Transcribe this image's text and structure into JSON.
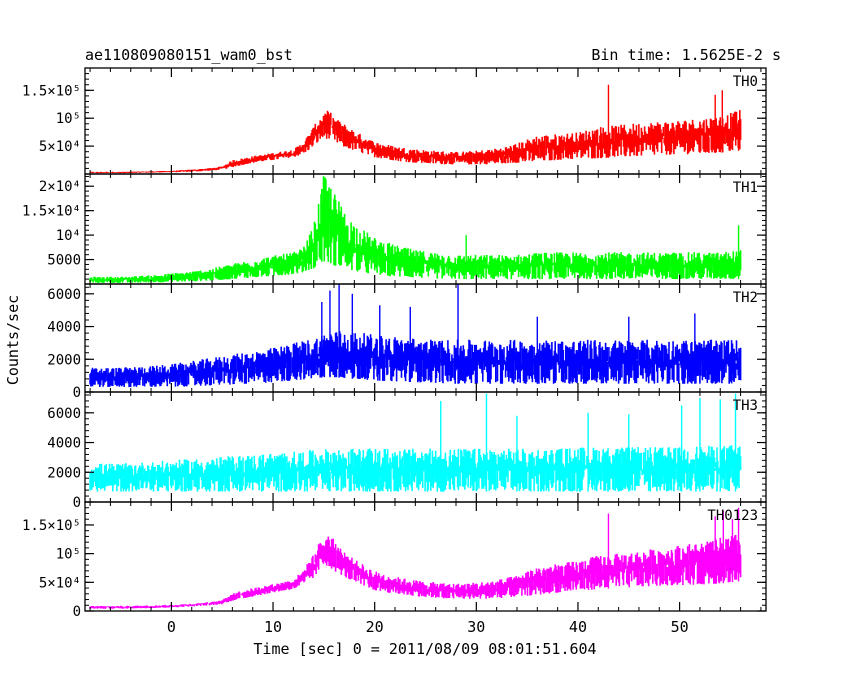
{
  "header": {
    "object_name": "ae110809080151_wam0_bst",
    "bin_time": "Bin time: 1.5625E-2 s"
  },
  "axes": {
    "xlabel": "Time [sec] 0 = 2011/08/09 08:01:51.604",
    "ylabel": "Counts/sec"
  },
  "chart_data": [
    {
      "type": "line",
      "name": "TH0",
      "color": "#ff0000",
      "xlim": [
        -8.5,
        58.5
      ],
      "ylim": [
        0,
        190000
      ],
      "yticks": [
        {
          "v": 50000,
          "label": "5×10⁴"
        },
        {
          "v": 100000,
          "label": "10⁵"
        },
        {
          "v": 150000,
          "label": "1.5×10⁵"
        }
      ],
      "envelope": {
        "x": [
          -8,
          -5,
          -2,
          0,
          2,
          4,
          5,
          6,
          8,
          10,
          12,
          13,
          14,
          14.5,
          15,
          15.5,
          16,
          17,
          18,
          19,
          20,
          22,
          24,
          26,
          28,
          30,
          32,
          34,
          36,
          38,
          40,
          42,
          44,
          46,
          48,
          50,
          52,
          54,
          55,
          56
        ],
        "ymin": [
          1500,
          1500,
          2500,
          3000,
          4000,
          6000,
          8000,
          12000,
          20000,
          25000,
          30000,
          36000,
          50000,
          58000,
          65000,
          62000,
          58000,
          48000,
          42000,
          36000,
          30000,
          24000,
          20000,
          18000,
          17000,
          17000,
          18000,
          20000,
          22000,
          25000,
          27000,
          28000,
          30000,
          32000,
          34000,
          35000,
          36000,
          38000,
          40000,
          42000
        ],
        "ymax": [
          4000,
          4000,
          5000,
          6000,
          8000,
          11000,
          14000,
          25000,
          32000,
          38000,
          44000,
          58000,
          85000,
          100000,
          110000,
          115000,
          102000,
          90000,
          78000,
          68000,
          58000,
          50000,
          45000,
          42000,
          40000,
          42000,
          46000,
          55000,
          70000,
          72000,
          75000,
          85000,
          88000,
          92000,
          95000,
          97000,
          100000,
          105000,
          110000,
          115000
        ]
      },
      "spikes": [
        [
          43,
          160000
        ],
        [
          53.5,
          142000
        ],
        [
          54.2,
          150000
        ],
        [
          55.8,
          95000
        ]
      ]
    },
    {
      "type": "line",
      "name": "TH1",
      "color": "#00ff00",
      "xlim": [
        -8.5,
        58.5
      ],
      "ylim": [
        0,
        22500
      ],
      "yticks": [
        {
          "v": 5000,
          "label": "5000"
        },
        {
          "v": 10000,
          "label": "10⁴"
        },
        {
          "v": 15000,
          "label": "1.5×10⁴"
        },
        {
          "v": 20000,
          "label": "2×10⁴"
        }
      ],
      "envelope": {
        "x": [
          -8,
          -5,
          -2,
          0,
          2,
          4,
          6,
          8,
          10,
          12,
          13,
          14,
          14.5,
          15,
          15.5,
          16,
          17,
          18,
          20,
          22,
          24,
          26,
          28,
          30,
          32,
          34,
          36,
          38,
          40,
          42,
          44,
          46,
          48,
          50,
          52,
          54,
          56
        ],
        "ymin": [
          200,
          200,
          300,
          400,
          500,
          700,
          1000,
          1300,
          1600,
          2000,
          2400,
          3200,
          4000,
          4500,
          4200,
          3800,
          3200,
          2600,
          1900,
          1500,
          1300,
          1100,
          1000,
          1000,
          1000,
          1000,
          1000,
          1000,
          1000,
          1000,
          1000,
          1000,
          1000,
          1000,
          1000,
          1000,
          1000
        ],
        "ymax": [
          1500,
          1500,
          1800,
          2200,
          2600,
          3200,
          4200,
          5000,
          5800,
          6500,
          7500,
          12000,
          17000,
          22500,
          21000,
          19000,
          15000,
          12500,
          9500,
          8000,
          7000,
          6500,
          6000,
          6000,
          6000,
          6000,
          6500,
          6500,
          6500,
          6500,
          6500,
          6500,
          6500,
          6500,
          6500,
          6500,
          7000
        ]
      },
      "spikes": [
        [
          29,
          10000
        ],
        [
          55.8,
          12000
        ]
      ]
    },
    {
      "type": "line",
      "name": "TH2",
      "color": "#0000ff",
      "xlim": [
        -8.5,
        58.5
      ],
      "ylim": [
        0,
        6600
      ],
      "yticks": [
        {
          "v": 0,
          "label": "0"
        },
        {
          "v": 2000,
          "label": "2000"
        },
        {
          "v": 4000,
          "label": "4000"
        },
        {
          "v": 6000,
          "label": "6000"
        }
      ],
      "envelope": {
        "x": [
          -8,
          -5,
          -2,
          0,
          2,
          4,
          6,
          8,
          10,
          12,
          14,
          15,
          16,
          18,
          20,
          22,
          24,
          26,
          28,
          30,
          32,
          34,
          36,
          38,
          40,
          42,
          44,
          46,
          48,
          50,
          52,
          54,
          56
        ],
        "ymin": [
          300,
          300,
          300,
          300,
          350,
          400,
          450,
          500,
          600,
          700,
          800,
          900,
          900,
          800,
          700,
          650,
          600,
          550,
          500,
          500,
          500,
          500,
          500,
          500,
          500,
          500,
          500,
          500,
          500,
          500,
          500,
          500,
          500
        ],
        "ymax": [
          1500,
          1500,
          1600,
          1700,
          1900,
          2100,
          2300,
          2500,
          2700,
          3000,
          3300,
          3600,
          3800,
          3700,
          3500,
          3400,
          3300,
          3200,
          3200,
          3200,
          3200,
          3200,
          3200,
          3200,
          3200,
          3200,
          3200,
          3200,
          3200,
          3200,
          3200,
          3200,
          3200
        ]
      },
      "spikes": [
        [
          14.8,
          5500
        ],
        [
          15.6,
          6200
        ],
        [
          16.5,
          6600
        ],
        [
          17.8,
          6000
        ],
        [
          20.5,
          5300
        ],
        [
          23.5,
          5200
        ],
        [
          28.2,
          6600
        ],
        [
          36,
          4600
        ],
        [
          45,
          4600
        ],
        [
          51.5,
          4800
        ]
      ]
    },
    {
      "type": "line",
      "name": "TH3",
      "color": "#00ffff",
      "xlim": [
        -8.5,
        58.5
      ],
      "ylim": [
        0,
        7400
      ],
      "yticks": [
        {
          "v": 0,
          "label": "0"
        },
        {
          "v": 2000,
          "label": "2000"
        },
        {
          "v": 4000,
          "label": "4000"
        },
        {
          "v": 6000,
          "label": "6000"
        }
      ],
      "envelope": {
        "x": [
          -8,
          -5,
          -2,
          0,
          2,
          4,
          6,
          8,
          10,
          12,
          14,
          16,
          18,
          20,
          22,
          24,
          26,
          28,
          30,
          32,
          34,
          36,
          38,
          40,
          42,
          44,
          46,
          48,
          50,
          52,
          54,
          56
        ],
        "ymin": [
          700,
          700,
          700,
          700,
          700,
          700,
          700,
          700,
          700,
          700,
          700,
          700,
          700,
          700,
          700,
          700,
          700,
          700,
          700,
          700,
          700,
          700,
          700,
          700,
          700,
          700,
          700,
          700,
          700,
          700,
          700,
          700
        ],
        "ymax": [
          2600,
          2600,
          2700,
          2800,
          2900,
          3000,
          3100,
          3200,
          3300,
          3400,
          3500,
          3600,
          3600,
          3600,
          3600,
          3600,
          3600,
          3600,
          3600,
          3600,
          3600,
          3600,
          3600,
          3700,
          3700,
          3700,
          3700,
          3700,
          3700,
          3800,
          3800,
          3900
        ]
      },
      "spikes": [
        [
          26.5,
          6800
        ],
        [
          31,
          7300
        ],
        [
          34,
          5800
        ],
        [
          41,
          6000
        ],
        [
          45,
          5900
        ],
        [
          50.2,
          6500
        ],
        [
          52,
          7000
        ],
        [
          54,
          6900
        ],
        [
          55.5,
          7300
        ]
      ]
    },
    {
      "type": "line",
      "name": "TH0123",
      "color": "#ff00ff",
      "xlim": [
        -8.5,
        58.5
      ],
      "ylim": [
        0,
        190000
      ],
      "yticks": [
        {
          "v": 0,
          "label": "0"
        },
        {
          "v": 50000,
          "label": "5×10⁴"
        },
        {
          "v": 100000,
          "label": "10⁵"
        },
        {
          "v": 150000,
          "label": "1.5×10⁵"
        }
      ],
      "envelope": {
        "x": [
          -8,
          -5,
          -2,
          0,
          2,
          4,
          5,
          6,
          8,
          10,
          12,
          13,
          14,
          14.5,
          15,
          15.5,
          16,
          17,
          18,
          19,
          20,
          22,
          24,
          26,
          28,
          30,
          32,
          34,
          36,
          38,
          40,
          42,
          44,
          46,
          48,
          50,
          52,
          54,
          55,
          56
        ],
        "ymin": [
          4000,
          4000,
          5000,
          6000,
          8000,
          10000,
          12000,
          18000,
          25000,
          32000,
          38000,
          44000,
          58000,
          70000,
          80000,
          78000,
          70000,
          60000,
          50000,
          42000,
          36000,
          30000,
          26000,
          22000,
          21000,
          21000,
          22000,
          25000,
          28000,
          32000,
          35000,
          38000,
          40000,
          42000,
          44000,
          45000,
          46000,
          48000,
          50000,
          52000
        ],
        "ymax": [
          9000,
          9000,
          10000,
          11000,
          13000,
          16000,
          19000,
          32000,
          40000,
          47000,
          55000,
          72000,
          100000,
          118000,
          128000,
          135000,
          125000,
          105000,
          90000,
          80000,
          70000,
          60000,
          54000,
          50000,
          48000,
          50000,
          54000,
          62000,
          78000,
          82000,
          88000,
          97000,
          100000,
          105000,
          110000,
          115000,
          120000,
          128000,
          132000,
          135000
        ]
      },
      "spikes": [
        [
          43,
          170000
        ],
        [
          53.5,
          165000
        ],
        [
          54.3,
          175000
        ],
        [
          55.2,
          160000
        ],
        [
          55.8,
          180000
        ]
      ]
    }
  ],
  "xaxis": {
    "ticks": [
      {
        "v": 0,
        "label": "0"
      },
      {
        "v": 10,
        "label": "10"
      },
      {
        "v": 20,
        "label": "20"
      },
      {
        "v": 30,
        "label": "30"
      },
      {
        "v": 40,
        "label": "40"
      },
      {
        "v": 50,
        "label": "50"
      }
    ]
  }
}
